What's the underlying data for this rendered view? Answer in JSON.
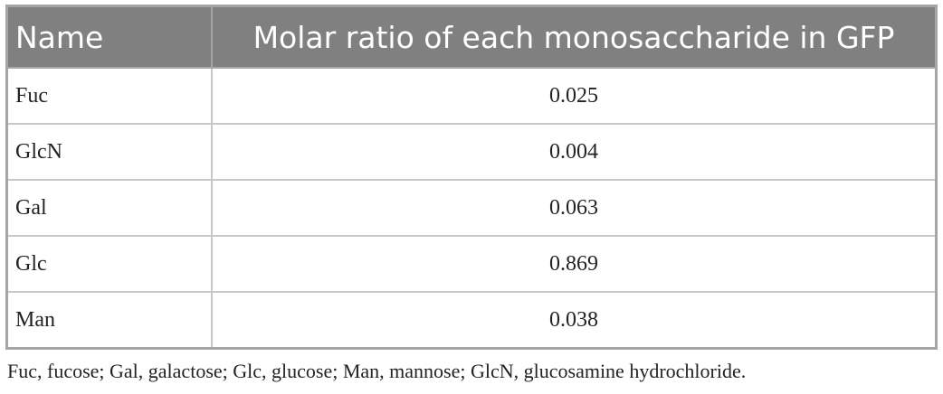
{
  "table": {
    "header": [
      "Name",
      "Molar ratio of each monosaccharide in GFP"
    ],
    "rows": [
      [
        "Fuc",
        "0.025"
      ],
      [
        "GlcN",
        "0.004"
      ],
      [
        "Gal",
        "0.063"
      ],
      [
        "Glc",
        "0.869"
      ],
      [
        "Man",
        "0.038"
      ]
    ]
  },
  "footnote": "Fuc, fucose; Gal, galactose; Glc, glucose; Man, mannose; GlcN, glucosamine hydrochloride."
}
